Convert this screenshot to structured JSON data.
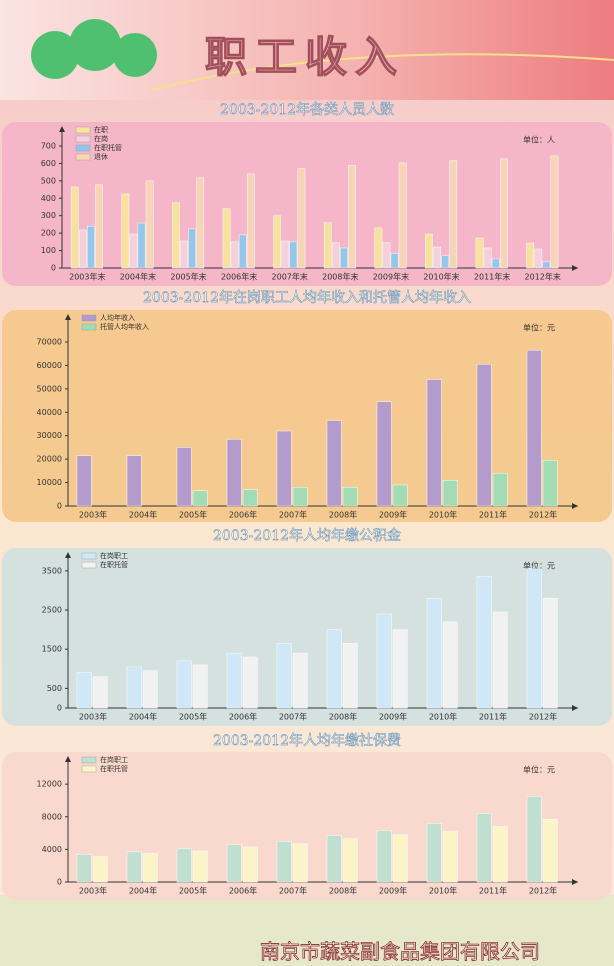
{
  "header": {
    "title": "职工收入"
  },
  "footer": {
    "company": "南京市蔬菜副食品集团有限公司"
  },
  "chart_data": [
    {
      "type": "bar",
      "title": "2003-2012年各类人员人数",
      "unit": "单位：人",
      "categories": [
        "2003年末",
        "2004年末",
        "2005年末",
        "2006年末",
        "2007年末",
        "2008年末",
        "2009年末",
        "2010年末",
        "2011年末",
        "2012年末"
      ],
      "series": [
        {
          "name": "在职",
          "color": "#f7e59a",
          "values": [
            465,
            425,
            375,
            340,
            300,
            260,
            230,
            195,
            172,
            143
          ]
        },
        {
          "name": "在岗",
          "color": "#f4d2dc",
          "values": [
            218,
            195,
            155,
            150,
            155,
            145,
            145,
            120,
            115,
            109
          ]
        },
        {
          "name": "在职托管",
          "color": "#8fc8ec",
          "values": [
            240,
            258,
            225,
            190,
            150,
            115,
            85,
            70,
            52,
            35
          ]
        },
        {
          "name": "退休",
          "color": "#f7d7b6",
          "values": [
            477,
            500,
            517,
            540,
            570,
            590,
            603,
            615,
            626,
            643
          ]
        }
      ],
      "ylim": [
        0,
        700
      ],
      "yticks": [
        0,
        100,
        200,
        300,
        400,
        500,
        600,
        700
      ]
    },
    {
      "type": "bar",
      "title": "2003-2012年在岗职工人均年收入和托管人均年收入",
      "unit": "单位：元",
      "categories": [
        "2003年",
        "2004年",
        "2005年",
        "2006年",
        "2007年",
        "2008年",
        "2009年",
        "2010年",
        "2011年",
        "2012年"
      ],
      "series": [
        {
          "name": "人均年收入",
          "color": "#b09ad0",
          "values": [
            21500,
            21500,
            25000,
            28500,
            32000,
            36500,
            44500,
            54000,
            60500,
            66500
          ]
        },
        {
          "name": "托管人均年收入",
          "color": "#9fdcb8",
          "values": [
            null,
            null,
            6500,
            7000,
            8000,
            8000,
            9000,
            11000,
            14000,
            19500
          ]
        }
      ],
      "ylim": [
        0,
        70000
      ],
      "yticks": [
        0,
        10000,
        20000,
        30000,
        40000,
        50000,
        60000,
        70000
      ]
    },
    {
      "type": "bar",
      "title": "2003-2012年人均年缴公积金",
      "unit": "单位：元",
      "categories": [
        "2003年",
        "2004年",
        "2005年",
        "2006年",
        "2007年",
        "2008年",
        "2009年",
        "2010年",
        "2011年",
        "2012年"
      ],
      "series": [
        {
          "name": "在岗职工",
          "color": "#cfe8f8",
          "values": [
            900,
            1050,
            1200,
            1400,
            1650,
            2000,
            2400,
            2800,
            3350,
            3550
          ]
        },
        {
          "name": "在职托管",
          "color": "#f2f2f2",
          "values": [
            800,
            950,
            1100,
            1300,
            1400,
            1650,
            2000,
            2200,
            2450,
            2800
          ]
        }
      ],
      "ylim": [
        0,
        3700
      ],
      "yticks": [
        0,
        500,
        1500,
        2500,
        3500
      ]
    },
    {
      "type": "bar",
      "title": "2003-2012年人均年缴社保费",
      "unit": "单位：元",
      "categories": [
        "2003年",
        "2004年",
        "2005年",
        "2006年",
        "2007年",
        "2008年",
        "2009年",
        "2010年",
        "2011年",
        "2012年"
      ],
      "series": [
        {
          "name": "在岗职工",
          "color": "#bfe0d0",
          "values": [
            3400,
            3700,
            4100,
            4600,
            5000,
            5700,
            6300,
            7200,
            8400,
            10500
          ]
        },
        {
          "name": "在职托管",
          "color": "#fbf6c8",
          "values": [
            3100,
            3500,
            3800,
            4300,
            4700,
            5300,
            5800,
            6200,
            6800,
            7700
          ]
        }
      ],
      "ylim": [
        0,
        13000
      ],
      "yticks": [
        0,
        4000,
        8000,
        12000
      ]
    }
  ]
}
